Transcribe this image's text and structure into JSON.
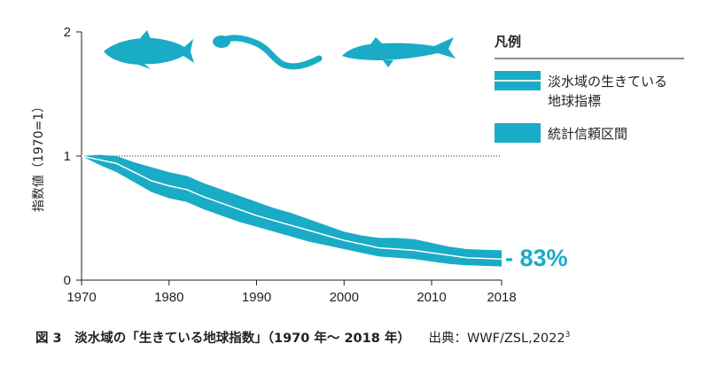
{
  "colors": {
    "accent": "#1aabc6",
    "text": "#231f20",
    "white": "#ffffff"
  },
  "chart_data": {
    "type": "area",
    "title": "淡水域の「生きている地球指数」（1970 年〜 2018 年）",
    "xlabel": "",
    "ylabel": "指数値（1970=1）",
    "xlim": [
      1970,
      2018
    ],
    "ylim": [
      0,
      2
    ],
    "x_ticks": [
      1970,
      1980,
      1990,
      2000,
      2010,
      2018
    ],
    "y_ticks": [
      0,
      1,
      2
    ],
    "reference_line": {
      "y": 1,
      "style": "dotted"
    },
    "x": [
      1970,
      1972,
      1974,
      1976,
      1978,
      1980,
      1982,
      1984,
      1986,
      1988,
      1990,
      1992,
      1994,
      1996,
      1998,
      2000,
      2002,
      2004,
      2006,
      2008,
      2010,
      2012,
      2014,
      2016,
      2018
    ],
    "series": [
      {
        "name": "淡水域の生きている地球指標",
        "values": [
          1.0,
          0.97,
          0.94,
          0.87,
          0.8,
          0.76,
          0.73,
          0.67,
          0.62,
          0.57,
          0.52,
          0.48,
          0.44,
          0.4,
          0.36,
          0.32,
          0.29,
          0.26,
          0.25,
          0.24,
          0.22,
          0.2,
          0.18,
          0.175,
          0.17
        ]
      },
      {
        "name": "統計信頼区間（上限）",
        "values": [
          1.0,
          1.01,
          1.0,
          0.95,
          0.91,
          0.87,
          0.84,
          0.78,
          0.73,
          0.68,
          0.63,
          0.58,
          0.54,
          0.49,
          0.44,
          0.39,
          0.36,
          0.34,
          0.34,
          0.33,
          0.3,
          0.27,
          0.25,
          0.245,
          0.24
        ]
      },
      {
        "name": "統計信頼区間（下限）",
        "values": [
          1.0,
          0.93,
          0.87,
          0.79,
          0.71,
          0.66,
          0.63,
          0.57,
          0.52,
          0.47,
          0.43,
          0.39,
          0.35,
          0.31,
          0.28,
          0.25,
          0.22,
          0.19,
          0.18,
          0.17,
          0.15,
          0.13,
          0.12,
          0.115,
          0.11
        ]
      }
    ],
    "annotation": "- 83%",
    "legend": {
      "title": "凡例",
      "position": "top-right",
      "items": [
        {
          "label_line1": "淡水域の生きている",
          "label_line2": "地球指標",
          "icon": "band-with-line"
        },
        {
          "label_line1": "統計信頼区間",
          "icon": "band"
        }
      ]
    },
    "decorations": [
      "salmon-silhouette-icon",
      "eel-silhouette-icon",
      "sturgeon-silhouette-icon"
    ]
  },
  "caption": {
    "figure_label": "図 3",
    "title": "淡水域の「生きている地球指数」（1970 年〜 2018 年）",
    "source": "出典：WWF/ZSL,2022",
    "source_ref": "3"
  }
}
